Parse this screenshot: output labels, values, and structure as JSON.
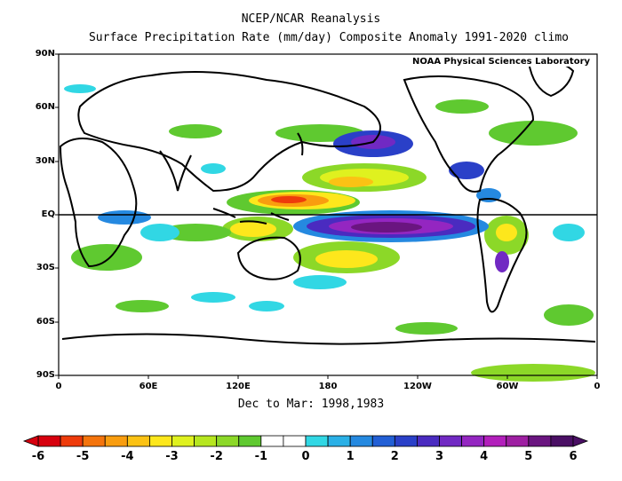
{
  "title": "NCEP/NCAR Reanalysis",
  "subtitle_line": "Surface Precipitation Rate (mm/day) Composite Anomaly 1991-2020 climo",
  "credit": "NOAA Physical Sciences Laboratory",
  "period": "Dec to Mar: 1998,1983",
  "lat_labels": [
    "90N",
    "60N",
    "30N",
    "EQ",
    "30S",
    "60S",
    "90S"
  ],
  "lon_labels": [
    "0",
    "60E",
    "120E",
    "180",
    "120W",
    "60W",
    "0"
  ],
  "colorbar": {
    "tick_labels": [
      "-6",
      "-5",
      "-4",
      "-3",
      "-2",
      "-1",
      "0",
      "1",
      "2",
      "3",
      "4",
      "5",
      "6"
    ],
    "colors": [
      "#d7000e",
      "#ee3b0b",
      "#f4740c",
      "#f99d0f",
      "#fbc214",
      "#fde71c",
      "#dff11f",
      "#b6e61f",
      "#8cd828",
      "#5fc930",
      "#ffffff",
      "#ffffff",
      "#31d7e4",
      "#2ab0e6",
      "#2589e0",
      "#225fd5",
      "#2a40c8",
      "#4a2bc0",
      "#7129c3",
      "#9426c1",
      "#b21fbb",
      "#9e1fa2",
      "#6a1580",
      "#4a0f64"
    ]
  },
  "map": {
    "projection": "equirectangular",
    "lon_range": [
      0,
      360
    ],
    "lat_range": [
      -90,
      90
    ],
    "variable": "precipitation rate anomaly (mm/day)"
  }
}
